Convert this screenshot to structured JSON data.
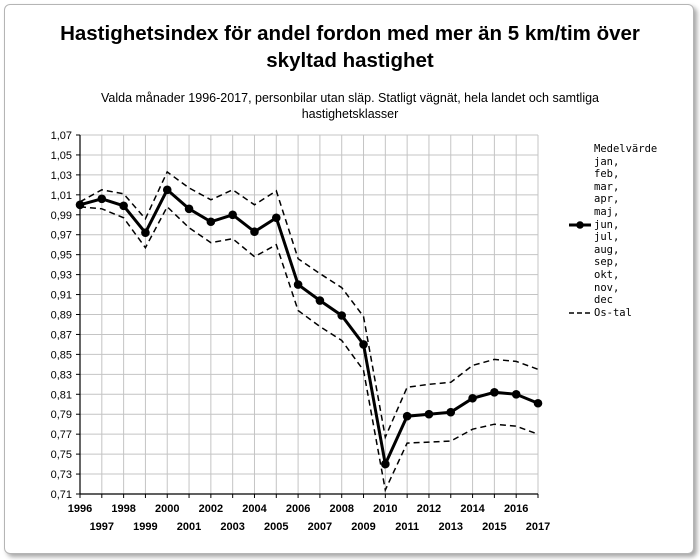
{
  "title": "Hastighetsindex för andel fordon med mer än 5 km/tim över\nskyltad hastighet",
  "subtitle": "Valda månader 1996-2017, personbilar utan släp. Statligt vägnät, hela landet och samtliga\nhastighetsklasser",
  "legend": {
    "items": [
      {
        "label": "Medelvärde",
        "symbol": "none"
      },
      {
        "label": "jan,",
        "symbol": "none"
      },
      {
        "label": "feb,",
        "symbol": "none"
      },
      {
        "label": "mar,",
        "symbol": "none"
      },
      {
        "label": "apr,",
        "symbol": "none"
      },
      {
        "label": "maj,",
        "symbol": "none"
      },
      {
        "label": "jun,",
        "symbol": "solid-marker"
      },
      {
        "label": "jul,",
        "symbol": "none"
      },
      {
        "label": "aug,",
        "symbol": "none"
      },
      {
        "label": "sep,",
        "symbol": "none"
      },
      {
        "label": "okt,",
        "symbol": "none"
      },
      {
        "label": "nov,",
        "symbol": "none"
      },
      {
        "label": "dec",
        "symbol": "none"
      },
      {
        "label": "Os-tal",
        "symbol": "dashed"
      }
    ]
  },
  "chart_data": {
    "type": "line",
    "x": [
      "1996",
      "1997",
      "1998",
      "1999",
      "2000",
      "2001",
      "2002",
      "2003",
      "2004",
      "2005",
      "2006",
      "2007",
      "2008",
      "2009",
      "2010",
      "2011",
      "2012",
      "2013",
      "2014",
      "2015",
      "2016",
      "2017"
    ],
    "x_ticks_upper": [
      "1996",
      "1998",
      "2000",
      "2002",
      "2004",
      "2006",
      "2008",
      "2010",
      "2012",
      "2014",
      "2016"
    ],
    "x_ticks_lower": [
      "1997",
      "1999",
      "2001",
      "2003",
      "2005",
      "2007",
      "2009",
      "2011",
      "2013",
      "2015",
      "2017"
    ],
    "y_ticks": [
      "0,71",
      "0,73",
      "0,75",
      "0,77",
      "0,79",
      "0,81",
      "0,83",
      "0,85",
      "0,87",
      "0,89",
      "0,91",
      "0,93",
      "0,95",
      "0,97",
      "0,99",
      "1,01",
      "1,03",
      "1,05",
      "1,07"
    ],
    "ylim": [
      0.71,
      1.07
    ],
    "grid": true,
    "legend_position": "right",
    "series": [
      {
        "name": "Medelvärde jan, feb, mar, apr, maj, jun, jul, aug, sep, okt, nov, dec",
        "style": "solid-marker",
        "color": "#000000",
        "values": [
          1.0,
          1.006,
          0.999,
          0.972,
          1.015,
          0.996,
          0.983,
          0.99,
          0.973,
          0.987,
          0.92,
          0.904,
          0.889,
          0.86,
          0.74,
          0.788,
          0.79,
          0.792,
          0.806,
          0.812,
          0.81,
          0.801
        ]
      },
      {
        "name": "Os-tal",
        "style": "dashed",
        "color": "#000000",
        "values": [
          1.003,
          1.015,
          1.011,
          0.986,
          1.033,
          1.017,
          1.005,
          1.015,
          1.0,
          1.014,
          0.946,
          0.931,
          0.917,
          0.888,
          0.767,
          0.817,
          0.82,
          0.822,
          0.839,
          0.845,
          0.843,
          0.835
        ]
      },
      {
        "name": "Os-tal",
        "style": "dashed",
        "color": "#000000",
        "values": [
          0.998,
          0.996,
          0.987,
          0.957,
          0.998,
          0.977,
          0.962,
          0.966,
          0.948,
          0.96,
          0.894,
          0.878,
          0.864,
          0.834,
          0.714,
          0.761,
          0.762,
          0.763,
          0.775,
          0.78,
          0.778,
          0.77
        ]
      }
    ]
  }
}
